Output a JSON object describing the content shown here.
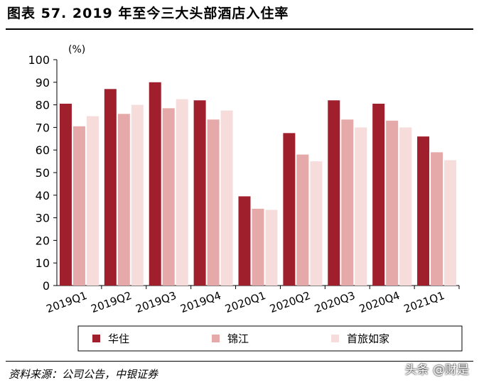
{
  "title": "图表 57. 2019 年至今三大头部酒店入住率",
  "source": "资料来源：公司公告，中银证券",
  "watermark": "头条 @财是",
  "chart_data": {
    "type": "bar",
    "unit_label": "(%)",
    "categories": [
      "2019Q1",
      "2019Q2",
      "2019Q3",
      "2019Q4",
      "2020Q1",
      "2020Q2",
      "2020Q3",
      "2020Q4",
      "2021Q1"
    ],
    "series": [
      {
        "name": "华住",
        "color": "#A01F2D",
        "values": [
          80.5,
          87,
          90,
          82,
          39.5,
          67.5,
          82,
          80.5,
          66
        ]
      },
      {
        "name": "锦江",
        "color": "#E6A9A9",
        "values": [
          70.5,
          76,
          78.5,
          73.5,
          34,
          58,
          73.5,
          73,
          59
        ]
      },
      {
        "name": "首旅如家",
        "color": "#F7DCDC",
        "values": [
          75,
          80,
          82.5,
          77.5,
          33.5,
          55,
          70,
          70,
          55.5
        ]
      }
    ],
    "yticks": [
      0,
      10,
      20,
      30,
      40,
      50,
      60,
      70,
      80,
      90,
      100
    ],
    "ylim": [
      0,
      100
    ],
    "grid": false,
    "legend_position": "bottom"
  }
}
